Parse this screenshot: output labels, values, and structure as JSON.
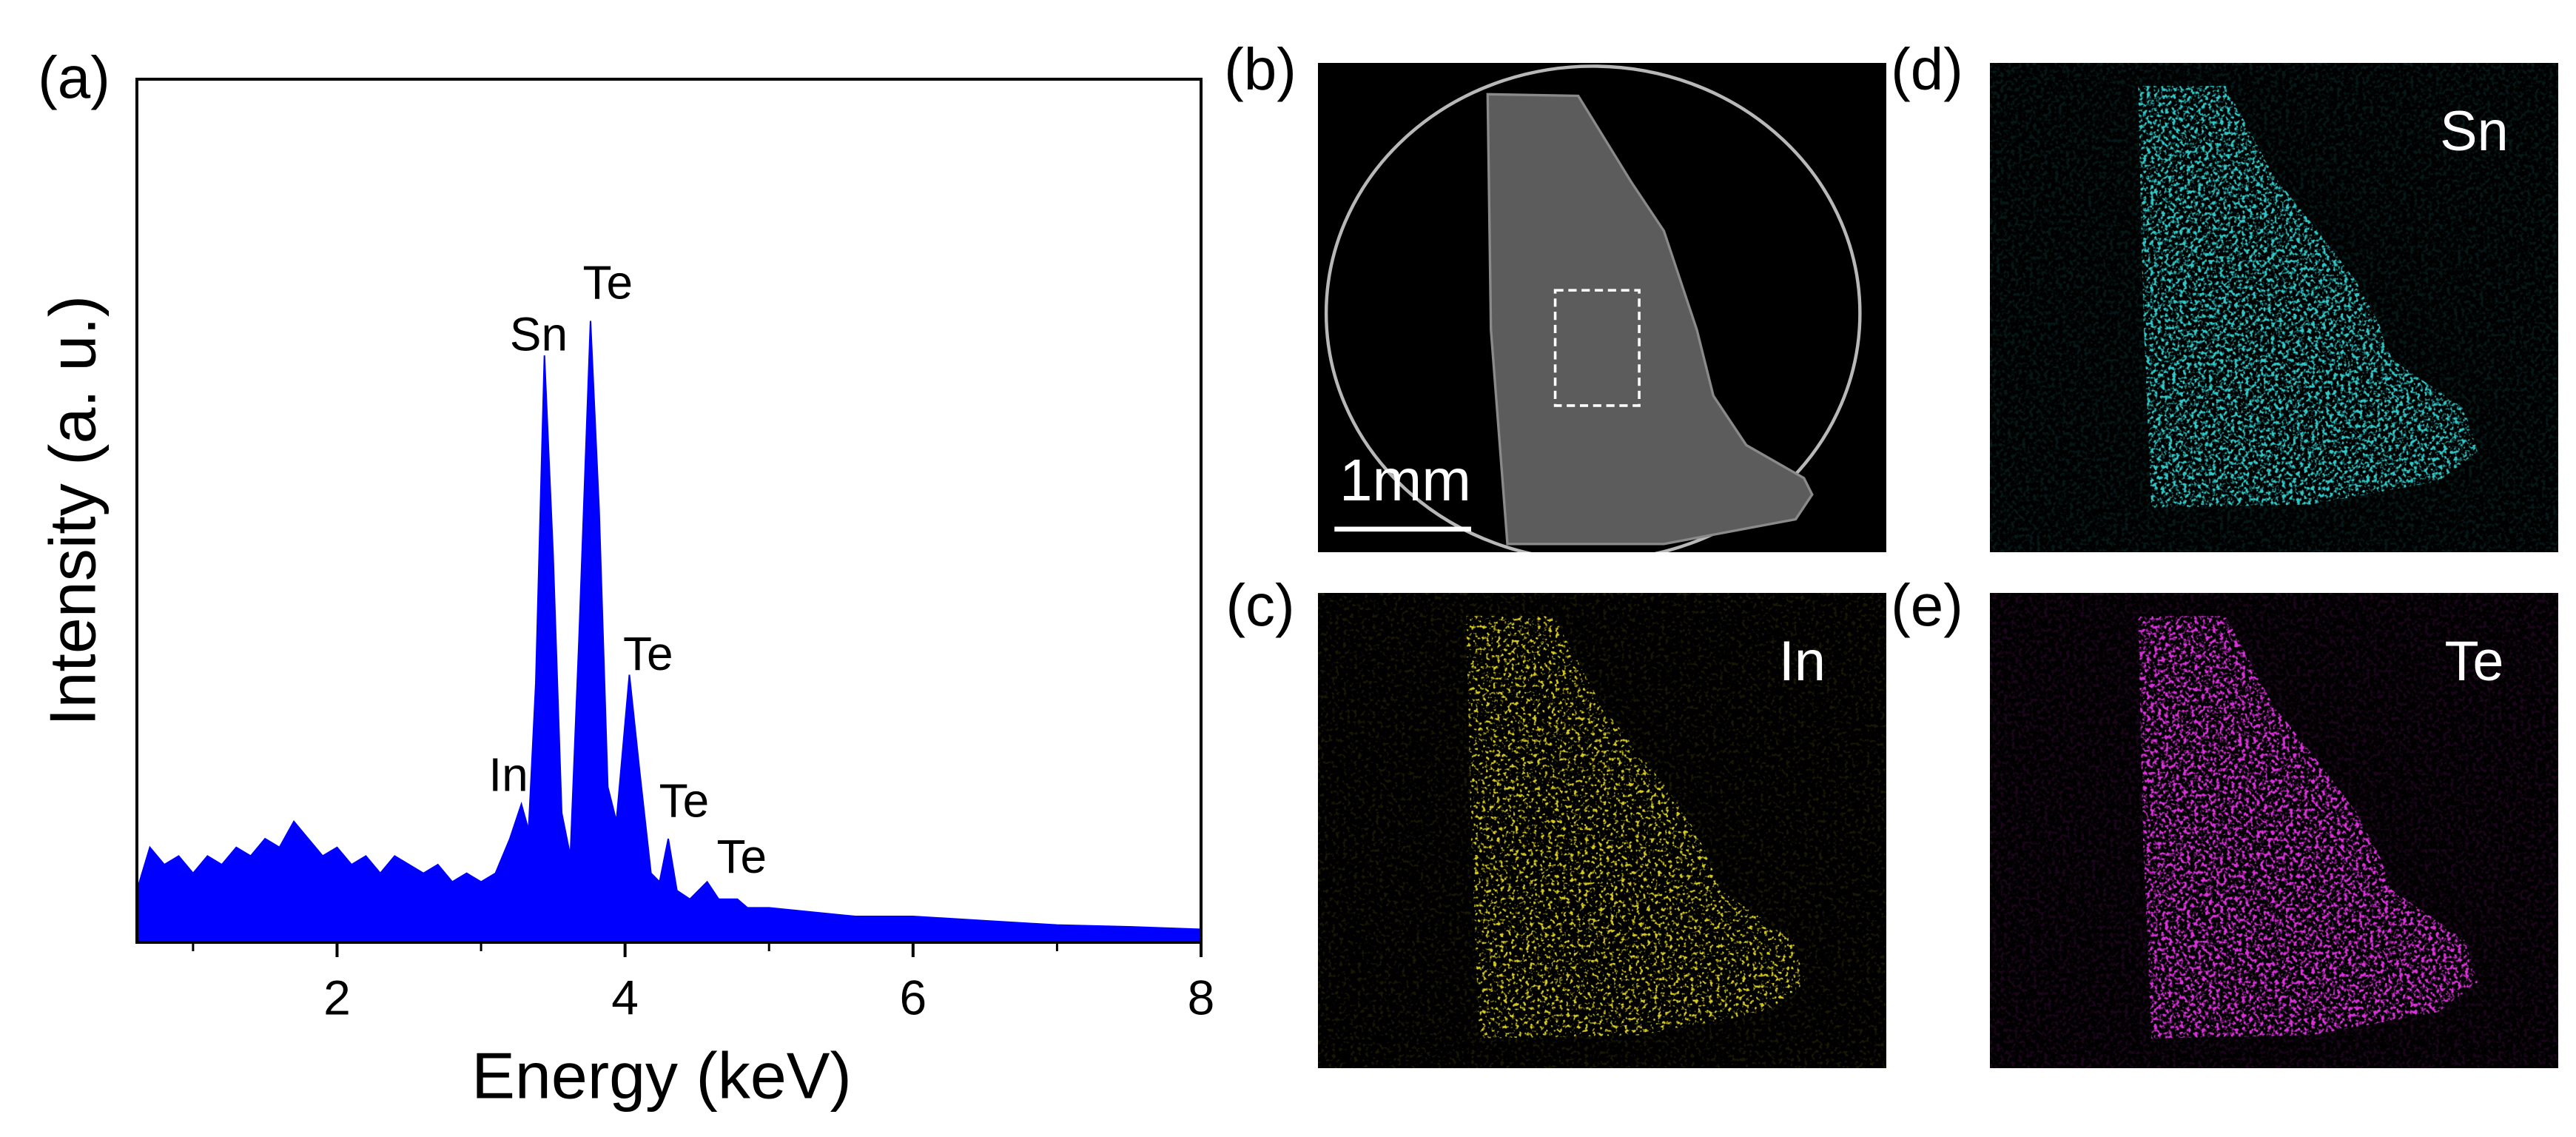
{
  "chart_data": {
    "type": "area",
    "panel_label": "(a)",
    "x_label": "Energy (keV)",
    "y_label": "Intensity (a. u.)",
    "color": "#0000ff",
    "xlim": [
      0.61,
      8
    ],
    "ylim": [
      0,
      1
    ],
    "xticks": [
      2,
      4,
      6,
      8
    ],
    "xminorticks": [
      1,
      3,
      5,
      7
    ],
    "x": [
      0.61,
      0.7,
      0.8,
      0.9,
      1.0,
      1.1,
      1.2,
      1.3,
      1.4,
      1.5,
      1.6,
      1.7,
      1.8,
      1.9,
      2.0,
      2.1,
      2.2,
      2.3,
      2.4,
      2.5,
      2.6,
      2.7,
      2.8,
      2.9,
      3.0,
      3.1,
      3.2,
      3.28,
      3.33,
      3.38,
      3.44,
      3.5,
      3.56,
      3.62,
      3.68,
      3.76,
      3.82,
      3.88,
      3.94,
      4.03,
      4.1,
      4.18,
      4.24,
      4.3,
      4.36,
      4.45,
      4.57,
      4.65,
      4.78,
      4.85,
      5.0,
      5.3,
      5.6,
      6.0,
      6.5,
      7.0,
      7.5,
      8.0
    ],
    "values": [
      0.06,
      0.11,
      0.09,
      0.1,
      0.08,
      0.1,
      0.09,
      0.11,
      0.1,
      0.12,
      0.11,
      0.14,
      0.12,
      0.1,
      0.11,
      0.09,
      0.1,
      0.08,
      0.1,
      0.09,
      0.08,
      0.09,
      0.07,
      0.08,
      0.07,
      0.08,
      0.12,
      0.16,
      0.13,
      0.3,
      0.68,
      0.45,
      0.15,
      0.1,
      0.35,
      0.72,
      0.5,
      0.18,
      0.14,
      0.31,
      0.2,
      0.08,
      0.07,
      0.12,
      0.06,
      0.05,
      0.07,
      0.05,
      0.05,
      0.04,
      0.04,
      0.035,
      0.03,
      0.03,
      0.025,
      0.02,
      0.018,
      0.015
    ],
    "annotations": [
      {
        "text": "Sn",
        "x": 3.4,
        "y": 0.7
      },
      {
        "text": "Te",
        "x": 3.88,
        "y": 0.76
      },
      {
        "text": "Te",
        "x": 4.16,
        "y": 0.33
      },
      {
        "text": "In",
        "x": 3.19,
        "y": 0.19
      },
      {
        "text": "Te",
        "x": 4.41,
        "y": 0.16
      },
      {
        "text": "Te",
        "x": 4.81,
        "y": 0.095
      }
    ]
  },
  "images": [
    {
      "label": "(b)",
      "scale_bar": "1mm"
    },
    {
      "label": "(c)",
      "element": "In",
      "color": "#d8cc20"
    },
    {
      "label": "(d)",
      "element": "Sn",
      "color": "#30c8c8"
    },
    {
      "label": "(e)",
      "element": "Te",
      "color": "#d830d8"
    }
  ]
}
